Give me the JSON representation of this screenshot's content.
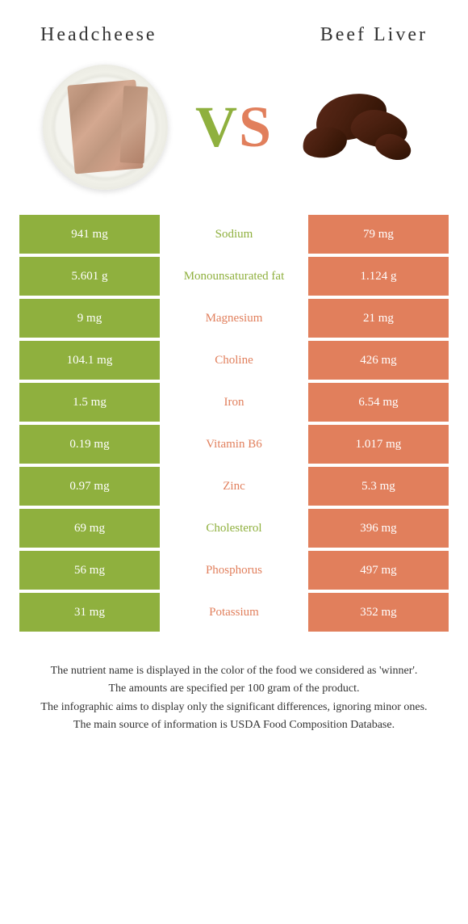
{
  "colors": {
    "green": "#8fb03e",
    "orange": "#e17f5c",
    "text_dark": "#333333"
  },
  "foods": {
    "left": "Headcheese",
    "right": "Beef Liver"
  },
  "vs": {
    "v": "V",
    "s": "S"
  },
  "rows": [
    {
      "left": "941 mg",
      "nutrient": "Sodium",
      "right": "79 mg",
      "winner": "left"
    },
    {
      "left": "5.601 g",
      "nutrient": "Monounsaturated fat",
      "right": "1.124 g",
      "winner": "left"
    },
    {
      "left": "9 mg",
      "nutrient": "Magnesium",
      "right": "21 mg",
      "winner": "right"
    },
    {
      "left": "104.1 mg",
      "nutrient": "Choline",
      "right": "426 mg",
      "winner": "right"
    },
    {
      "left": "1.5 mg",
      "nutrient": "Iron",
      "right": "6.54 mg",
      "winner": "right"
    },
    {
      "left": "0.19 mg",
      "nutrient": "Vitamin B6",
      "right": "1.017 mg",
      "winner": "right"
    },
    {
      "left": "0.97 mg",
      "nutrient": "Zinc",
      "right": "5.3 mg",
      "winner": "right"
    },
    {
      "left": "69 mg",
      "nutrient": "Cholesterol",
      "right": "396 mg",
      "winner": "left"
    },
    {
      "left": "56 mg",
      "nutrient": "Phosphorus",
      "right": "497 mg",
      "winner": "right"
    },
    {
      "left": "31 mg",
      "nutrient": "Potassium",
      "right": "352 mg",
      "winner": "right"
    }
  ],
  "footnotes": [
    "The nutrient name is displayed in the color of the food we considered as 'winner'.",
    "The amounts are specified per 100 gram of the product.",
    "The infographic aims to display only the significant differences, ignoring minor ones.",
    "The main source of information is USDA Food Composition Database."
  ]
}
